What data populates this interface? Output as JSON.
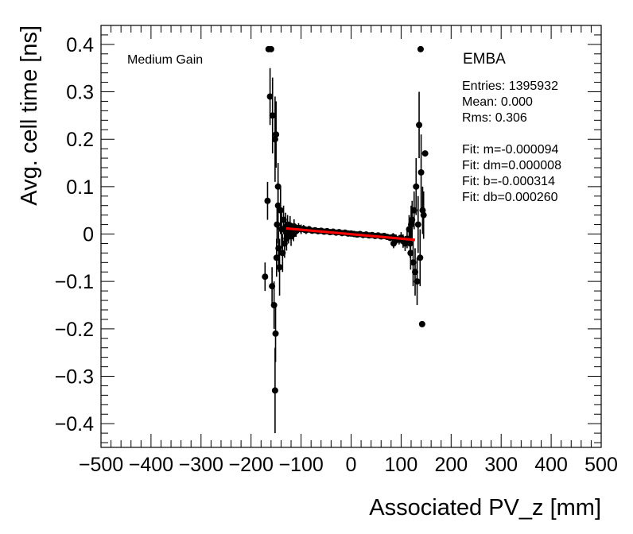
{
  "chart_data": {
    "type": "scatter",
    "xlabel": "Associated PV_z [mm]",
    "ylabel": "Avg. cell time [ns]",
    "xlim": [
      -500,
      500
    ],
    "ylim": [
      -0.45,
      0.44
    ],
    "x_ticks": [
      -500,
      -400,
      -300,
      -200,
      -100,
      0,
      100,
      200,
      300,
      400,
      500
    ],
    "x_tick_labels": [
      "−500",
      "−400",
      "−300",
      "−200",
      "−100",
      "0",
      "100",
      "200",
      "300",
      "400",
      "500"
    ],
    "y_ticks": [
      -0.4,
      -0.3,
      -0.2,
      -0.1,
      0,
      0.1,
      0.2,
      0.3,
      0.4
    ],
    "y_tick_labels": [
      "−0.4",
      "−0.3",
      "−0.2",
      "−0.1",
      "0",
      "0.1",
      "0.2",
      "0.3",
      "0.4"
    ],
    "annotations": {
      "gain": "Medium Gain",
      "partition": "EMBA",
      "stats": [
        "Entries: 1395932",
        "Mean: 0.000",
        "Rms: 0.306"
      ],
      "fit": [
        "Fit: m=-0.000094",
        "Fit: dm=0.000008",
        "Fit: b=-0.000314",
        "Fit: db=0.000260"
      ]
    },
    "fit_line": {
      "x": [
        -130,
        128
      ],
      "y": [
        0.0119,
        -0.0123
      ],
      "color": "#ff0000"
    },
    "series": [
      {
        "name": "data",
        "color": "#000000",
        "points": [
          [
            -165,
            0.39,
            0.005
          ],
          [
            -160,
            0.39,
            0.005
          ],
          [
            139,
            0.39,
            0.005
          ],
          [
            -162,
            0.29,
            0.06
          ],
          [
            -157,
            0.25,
            0.08
          ],
          [
            -152,
            0.2,
            0.09
          ],
          [
            -150,
            0.21,
            0.07
          ],
          [
            -146,
            0.1,
            0.05
          ],
          [
            -167,
            0.07,
            0.04
          ],
          [
            -172,
            -0.09,
            0.03
          ],
          [
            -158,
            -0.11,
            0.04
          ],
          [
            -154,
            -0.15,
            0.05
          ],
          [
            -151,
            -0.21,
            0.06
          ],
          [
            -152,
            -0.33,
            0.09
          ],
          [
            -148,
            0.02,
            0.04
          ],
          [
            -145,
            -0.03,
            0.05
          ],
          [
            -143,
            -0.07,
            0.06
          ],
          [
            -141,
            0.05,
            0.05
          ],
          [
            -139,
            0.01,
            0.04
          ],
          [
            -137,
            -0.04,
            0.04
          ],
          [
            -135,
            0.03,
            0.03
          ],
          [
            -133,
            -0.02,
            0.03
          ],
          [
            -131,
            0.015,
            0.03
          ],
          [
            -129,
            -0.01,
            0.025
          ],
          [
            -127,
            0.02,
            0.02
          ],
          [
            -125,
            0.0,
            0.02
          ],
          [
            -122,
            0.018,
            0.02
          ],
          [
            -118,
            0.008,
            0.015
          ],
          [
            -114,
            0.016,
            0.015
          ],
          [
            -110,
            0.006,
            0.012
          ],
          [
            -105,
            0.013,
            0.01
          ],
          [
            -100,
            0.01,
            0.01
          ],
          [
            -95,
            0.011,
            0.008
          ],
          [
            -90,
            0.008,
            0.008
          ],
          [
            -84,
            0.01,
            0.007
          ],
          [
            -78,
            0.007,
            0.006
          ],
          [
            -72,
            0.008,
            0.006
          ],
          [
            -66,
            0.006,
            0.005
          ],
          [
            -60,
            0.007,
            0.005
          ],
          [
            -54,
            0.005,
            0.004
          ],
          [
            -48,
            0.006,
            0.004
          ],
          [
            -42,
            0.004,
            0.004
          ],
          [
            -36,
            0.005,
            0.004
          ],
          [
            -30,
            0.003,
            0.004
          ],
          [
            -24,
            0.004,
            0.004
          ],
          [
            -18,
            0.002,
            0.004
          ],
          [
            -12,
            0.003,
            0.004
          ],
          [
            -6,
            0.001,
            0.004
          ],
          [
            0,
            0.001,
            0.004
          ],
          [
            6,
            0.0,
            0.004
          ],
          [
            12,
            -0.001,
            0.004
          ],
          [
            18,
            0.0,
            0.004
          ],
          [
            24,
            -0.002,
            0.004
          ],
          [
            30,
            -0.001,
            0.004
          ],
          [
            36,
            -0.003,
            0.004
          ],
          [
            42,
            -0.002,
            0.004
          ],
          [
            48,
            -0.004,
            0.005
          ],
          [
            54,
            -0.003,
            0.005
          ],
          [
            60,
            -0.005,
            0.005
          ],
          [
            66,
            -0.004,
            0.006
          ],
          [
            72,
            -0.006,
            0.006
          ],
          [
            78,
            -0.008,
            0.007
          ],
          [
            84,
            -0.006,
            0.008
          ],
          [
            90,
            -0.01,
            0.009
          ],
          [
            96,
            -0.012,
            0.01
          ],
          [
            100,
            -0.008,
            0.012
          ],
          [
            104,
            -0.015,
            0.014
          ],
          [
            108,
            -0.02,
            0.016
          ],
          [
            112,
            -0.01,
            0.02
          ],
          [
            116,
            0.01,
            0.03
          ],
          [
            119,
            -0.04,
            0.035
          ],
          [
            122,
            0.03,
            0.04
          ],
          [
            124,
            -0.06,
            0.05
          ],
          [
            126,
            0.05,
            0.04
          ],
          [
            128,
            -0.08,
            0.05
          ],
          [
            130,
            0.1,
            0.06
          ],
          [
            132,
            -0.1,
            0.05
          ],
          [
            134,
            0.02,
            0.06
          ],
          [
            136,
            0.23,
            0.07
          ],
          [
            138,
            -0.05,
            0.06
          ],
          [
            140,
            0.13,
            0.08
          ],
          [
            142,
            -0.19,
            0.005
          ],
          [
            143,
            0.05,
            0.05
          ],
          [
            145,
            0.04,
            0.05
          ],
          [
            148,
            0.17,
            0.005
          ],
          [
            -149,
            -0.05,
            0.04
          ],
          [
            -146,
            0.06,
            0.05
          ],
          [
            120,
            0.02,
            0.04
          ],
          [
            118,
            -0.02,
            0.03
          ],
          [
            -120,
            -0.005,
            0.02
          ],
          [
            85,
            -0.02,
            0.01
          ],
          [
            88,
            -0.015,
            0.01
          ],
          [
            -115,
            0.0,
            0.015
          ]
        ]
      }
    ]
  }
}
